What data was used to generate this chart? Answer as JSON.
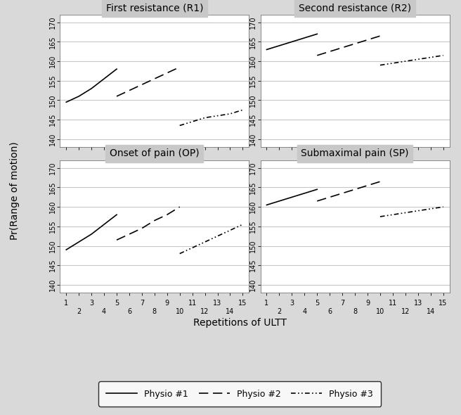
{
  "subplots": [
    {
      "title": "First resistance (R1)",
      "row": 0,
      "col": 0,
      "physio1_x": [
        1,
        2,
        3,
        4,
        5
      ],
      "physio1_y": [
        149.5,
        151.0,
        153.0,
        155.5,
        158.0
      ],
      "physio2_x": [
        5,
        6,
        7,
        8,
        9,
        10
      ],
      "physio2_y": [
        151.0,
        152.5,
        154.0,
        155.5,
        157.0,
        158.5
      ],
      "physio3_x": [
        10,
        11,
        12,
        13,
        14,
        15
      ],
      "physio3_y": [
        143.5,
        144.5,
        145.5,
        146.0,
        146.5,
        147.5
      ]
    },
    {
      "title": "Second resistance (R2)",
      "row": 0,
      "col": 1,
      "physio1_x": [
        1,
        2,
        3,
        4,
        5
      ],
      "physio1_y": [
        163.0,
        164.0,
        165.0,
        166.0,
        167.0
      ],
      "physio2_x": [
        5,
        6,
        7,
        8,
        9,
        10
      ],
      "physio2_y": [
        161.5,
        162.5,
        163.5,
        164.5,
        165.5,
        166.5
      ],
      "physio3_x": [
        10,
        11,
        12,
        13,
        14,
        15
      ],
      "physio3_y": [
        159.0,
        159.5,
        160.0,
        160.5,
        161.0,
        161.5
      ]
    },
    {
      "title": "Onset of pain (OP)",
      "row": 1,
      "col": 0,
      "physio1_x": [
        1,
        2,
        3,
        4,
        5
      ],
      "physio1_y": [
        149.0,
        151.0,
        153.0,
        155.5,
        158.0
      ],
      "physio2_x": [
        5,
        6,
        7,
        8,
        9,
        10
      ],
      "physio2_y": [
        151.5,
        153.0,
        154.5,
        156.5,
        158.0,
        160.0
      ],
      "physio3_x": [
        10,
        11,
        12,
        13,
        14,
        15
      ],
      "physio3_y": [
        148.0,
        149.5,
        151.0,
        152.5,
        154.0,
        155.5
      ]
    },
    {
      "title": "Submaximal pain (SP)",
      "row": 1,
      "col": 1,
      "physio1_x": [
        1,
        2,
        3,
        4,
        5
      ],
      "physio1_y": [
        160.5,
        161.5,
        162.5,
        163.5,
        164.5
      ],
      "physio2_x": [
        5,
        6,
        7,
        8,
        9,
        10
      ],
      "physio2_y": [
        161.5,
        162.5,
        163.5,
        164.5,
        165.5,
        166.5
      ],
      "physio3_x": [
        10,
        11,
        12,
        13,
        14,
        15
      ],
      "physio3_y": [
        157.5,
        158.0,
        158.5,
        159.0,
        159.5,
        160.0
      ]
    }
  ],
  "ylabel": "Pr(Range of motion)",
  "xlabel": "Repetitions of ULTT",
  "ylim": [
    138,
    172
  ],
  "yticks": [
    140,
    145,
    150,
    155,
    160,
    165,
    170
  ],
  "xlim": [
    0.5,
    15.5
  ],
  "xticks_odd": [
    1,
    3,
    5,
    7,
    9,
    11,
    13,
    15
  ],
  "xticks_even": [
    2,
    4,
    6,
    8,
    10,
    12,
    14
  ],
  "legend_labels": [
    "Physio #1",
    "Physio #2",
    "Physio #3"
  ],
  "bg_color": "#d9d9d9",
  "plot_bg_color": "#ffffff",
  "title_bg_color": "#c8c8c8",
  "grid_color": "#c8c8c8"
}
